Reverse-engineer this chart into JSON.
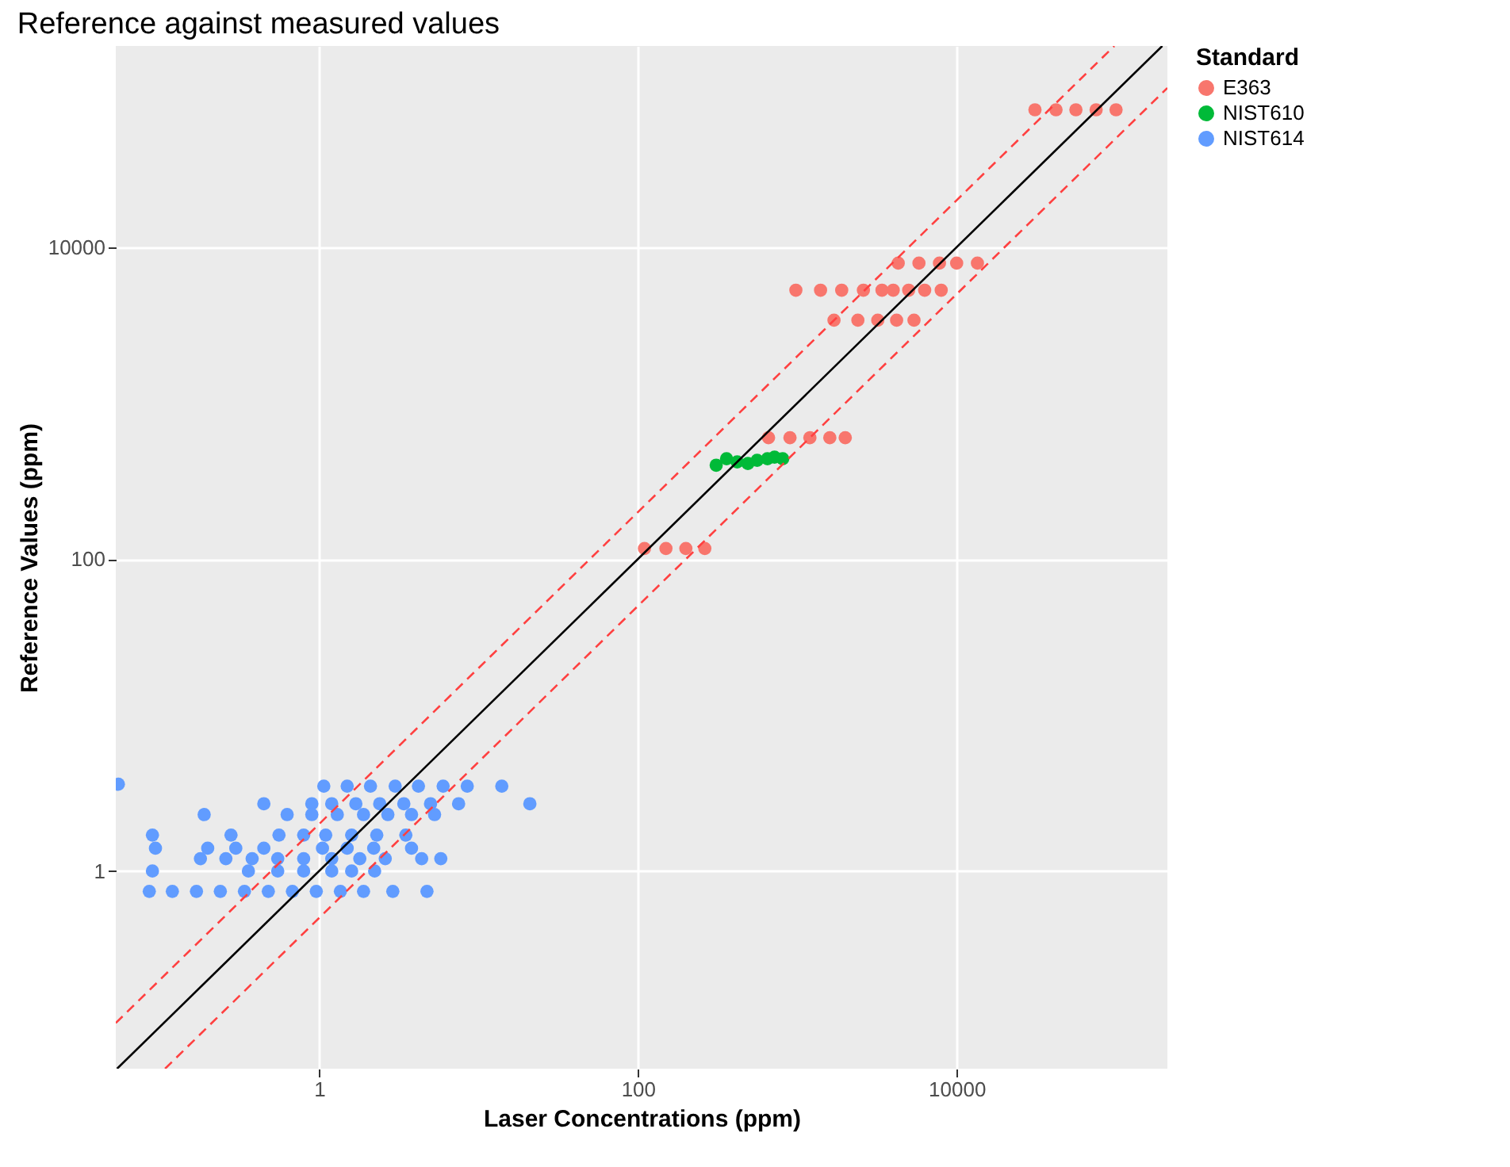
{
  "chart_data": {
    "type": "scatter",
    "title": "Reference against measured values",
    "xlabel": "Laser Concentrations (ppm)",
    "ylabel": "Reference Values (ppm)",
    "legend_title": "Standard",
    "log": "xy",
    "grid": true,
    "legend": "right",
    "xlim": [
      0.053,
      210000
    ],
    "ylim": [
      0.054,
      195000
    ],
    "xticks": [
      1,
      100,
      10000
    ],
    "yticks": [
      1,
      100,
      10000
    ],
    "series": [
      {
        "name": "E363",
        "color": "#f8766d",
        "marker": "circle",
        "x": [
          31000,
          42000,
          56000,
          75000,
          100000,
          4300,
          5800,
          7800,
          10000,
          13500,
          980,
          1400,
          1900,
          2600,
          3400,
          4000,
          5000,
          6300,
          8000,
          1700,
          2400,
          3200,
          4200,
          5400,
          660,
          900,
          1200,
          1600,
          2000,
          110,
          150,
          200,
          263
        ],
        "values": [
          76000,
          76000,
          76000,
          76000,
          76000,
          7900,
          7900,
          7900,
          7900,
          7900,
          5300,
          5300,
          5300,
          5300,
          5300,
          5300,
          5300,
          5300,
          5300,
          3400,
          3400,
          3400,
          3400,
          3400,
          600,
          600,
          600,
          600,
          600,
          117,
          117,
          117,
          117
        ]
      },
      {
        "name": "NIST610",
        "color": "#00ba38",
        "marker": "circle",
        "x": [
          310,
          360,
          420,
          490,
          560,
          650,
          720,
          810
        ],
        "values": [
          400,
          440,
          420,
          410,
          430,
          440,
          450,
          440
        ]
      },
      {
        "name": "NIST614",
        "color": "#619cff",
        "marker": "circle",
        "x": [
          0.055,
          1.07,
          1.5,
          2.1,
          3,
          4.2,
          6,
          8.5,
          14,
          0.45,
          0.9,
          1.2,
          1.7,
          2.4,
          3.4,
          5,
          7.5,
          21,
          0.19,
          0.63,
          0.9,
          1.3,
          1.9,
          2.7,
          3.8,
          5.3,
          0.09,
          0.28,
          0.56,
          0.8,
          1.1,
          1.6,
          2.3,
          3.5,
          0.094,
          0.2,
          0.3,
          0.45,
          1.05,
          1.5,
          2.2,
          3.8,
          0.18,
          0.26,
          0.38,
          0.55,
          0.8,
          1.2,
          1.8,
          2.6,
          4.4,
          5.8,
          0.09,
          0.36,
          0.55,
          0.8,
          1.2,
          1.6,
          2.23,
          0.086,
          0.12,
          0.17,
          0.24,
          0.34,
          0.48,
          0.68,
          0.96,
          1.36,
          1.9,
          2.9,
          4.75
        ],
        "values": [
          3.6,
          3.5,
          3.5,
          3.5,
          3.5,
          3.5,
          3.5,
          3.5,
          3.5,
          2.7,
          2.7,
          2.7,
          2.7,
          2.7,
          2.7,
          2.7,
          2.7,
          2.7,
          2.3,
          2.3,
          2.3,
          2.3,
          2.3,
          2.3,
          2.3,
          2.3,
          1.7,
          1.7,
          1.7,
          1.7,
          1.7,
          1.7,
          1.7,
          1.7,
          1.4,
          1.4,
          1.4,
          1.4,
          1.4,
          1.4,
          1.4,
          1.4,
          1.2,
          1.2,
          1.2,
          1.2,
          1.2,
          1.2,
          1.2,
          1.2,
          1.2,
          1.2,
          1.0,
          1.0,
          1.0,
          1.0,
          1.0,
          1.0,
          1.0,
          0.74,
          0.74,
          0.74,
          0.74,
          0.74,
          0.74,
          0.74,
          0.74,
          0.74,
          0.74,
          0.74,
          0.74
        ]
      },
      {
        "color": "#000000",
        "type": "line",
        "marker": "none",
        "line_style": "solid",
        "x": [
          0.054,
          195000
        ],
        "values": [
          0.054,
          195000
        ]
      },
      {
        "color": "#ff4040",
        "type": "line",
        "marker": "none",
        "line_style": "dashed",
        "x": [
          0.053,
          97500
        ],
        "values": [
          0.106,
          195000
        ]
      },
      {
        "color": "#ff4040",
        "type": "line",
        "marker": "none",
        "line_style": "dashed",
        "x": [
          0.108,
          210000
        ],
        "values": [
          0.054,
          105000
        ]
      }
    ]
  }
}
